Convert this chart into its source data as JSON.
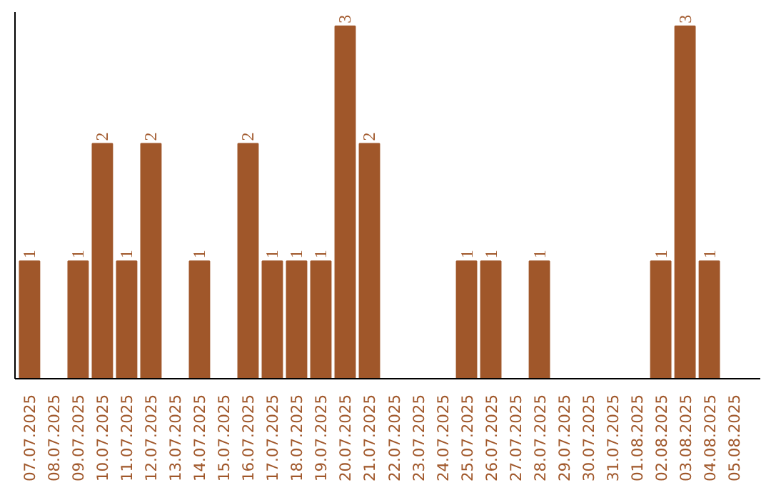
{
  "chart_data": {
    "type": "bar",
    "categories": [
      "07.07.2025",
      "08.07.2025",
      "09.07.2025",
      "10.07.2025",
      "11.07.2025",
      "12.07.2025",
      "13.07.2025",
      "14.07.2025",
      "15.07.2025",
      "16.07.2025",
      "17.07.2025",
      "18.07.2025",
      "19.07.2025",
      "20.07.2025",
      "21.07.2025",
      "22.07.2025",
      "23.07.2025",
      "24.07.2025",
      "25.07.2025",
      "26.07.2025",
      "27.07.2025",
      "28.07.2025",
      "29.07.2025",
      "30.07.2025",
      "31.07.2025",
      "01.08.2025",
      "02.08.2025",
      "03.08.2025",
      "04.08.2025",
      "05.08.2025"
    ],
    "values": [
      1,
      0,
      1,
      2,
      1,
      2,
      0,
      1,
      0,
      2,
      1,
      1,
      1,
      3,
      2,
      0,
      0,
      0,
      1,
      1,
      0,
      1,
      0,
      0,
      0,
      0,
      1,
      3,
      1,
      0
    ],
    "value_labels": [
      "1",
      null,
      "1",
      "2",
      "1",
      "2",
      null,
      "1",
      null,
      "2",
      "1",
      "1",
      "1",
      "3",
      "2",
      null,
      null,
      null,
      "1",
      "1",
      null,
      "1",
      null,
      null,
      null,
      null,
      "1",
      "3",
      "1",
      null
    ],
    "color": "#a0572a",
    "grid": false
  }
}
